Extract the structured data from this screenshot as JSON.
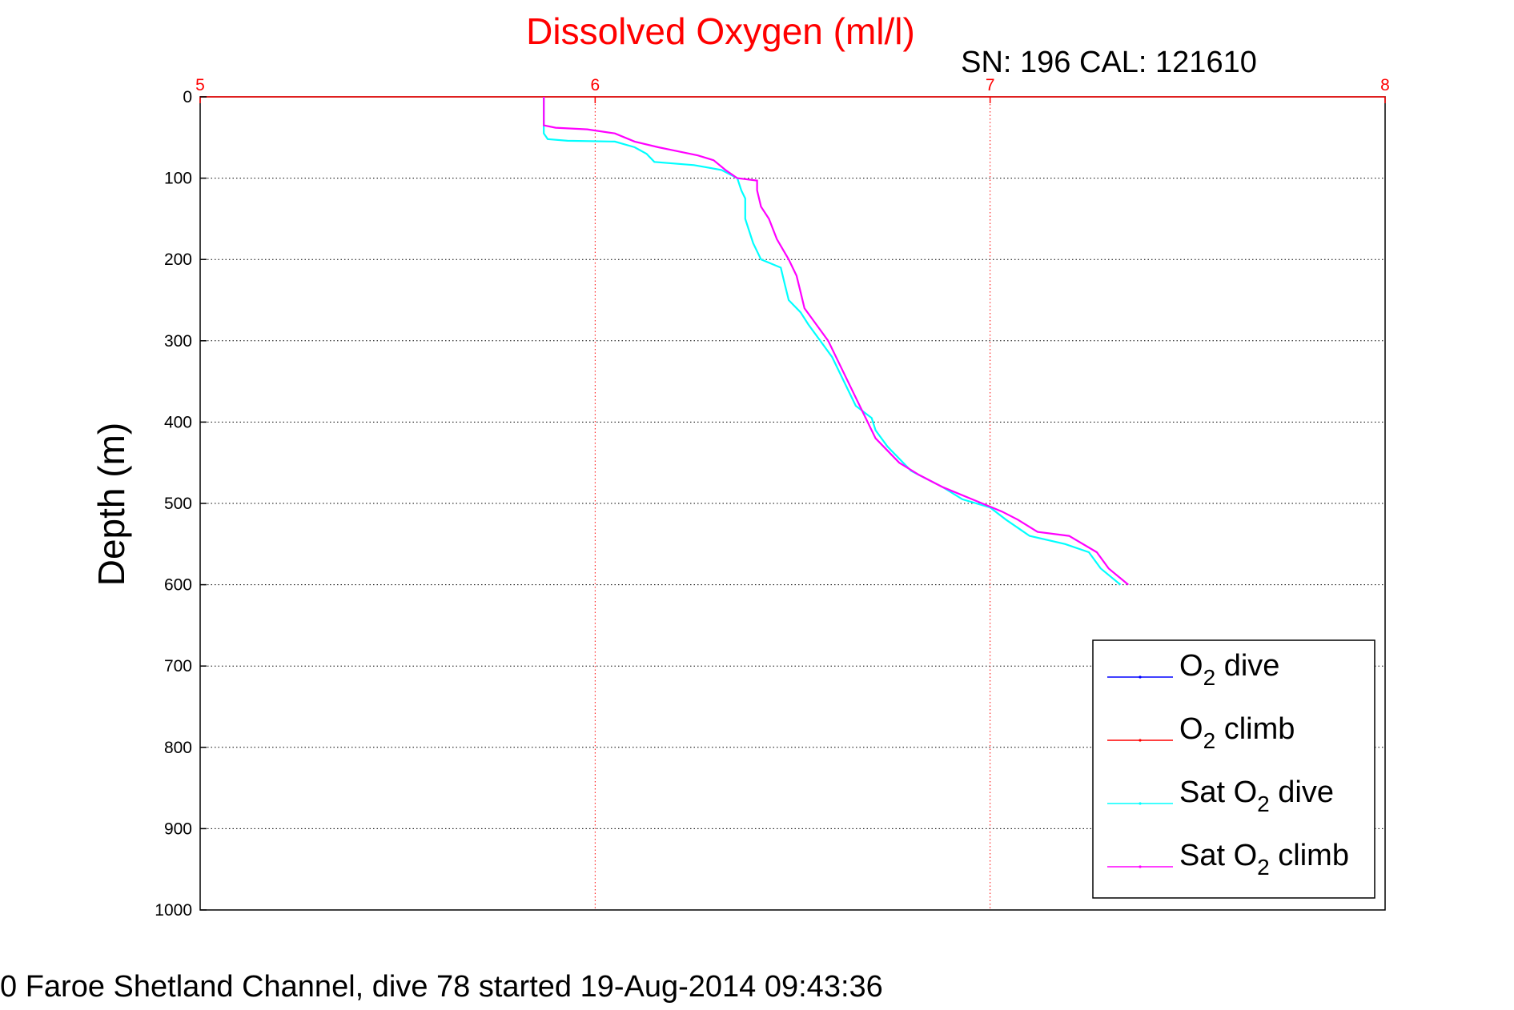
{
  "chart_data": {
    "type": "line",
    "title": "Dissolved Oxygen (ml/l)",
    "subtitle": "SN: 196  CAL: 121610",
    "ylabel": "Depth (m)",
    "xlabel": "",
    "caption": "0 Faroe Shetland Channel, dive 78 started 19-Aug-2014 09:43:36",
    "xlim": [
      5,
      8
    ],
    "ylim": [
      0,
      1000
    ],
    "y_reversed": true,
    "x_axis_position": "top",
    "xticks": [
      "5",
      "6",
      "7",
      "8"
    ],
    "yticks": [
      "0",
      "100",
      "200",
      "300",
      "400",
      "500",
      "600",
      "700",
      "800",
      "900",
      "1000"
    ],
    "grid": true,
    "legend_position": "bottom-right",
    "colors": {
      "title": "#ff0000",
      "xtick": "#ff0000",
      "xgrid": "#ff0000",
      "ygrid": "#000000"
    },
    "series": [
      {
        "name": "O2 dive",
        "legend_main": "O",
        "legend_sub": "2",
        "legend_rest": " dive",
        "legend_prefix": "",
        "color": "#0000ff",
        "visible": false,
        "points": []
      },
      {
        "name": "O2 climb",
        "legend_main": "O",
        "legend_sub": "2",
        "legend_rest": " climb",
        "legend_prefix": "",
        "color": "#ff0000",
        "visible": false,
        "points": []
      },
      {
        "name": "Sat O2 dive",
        "legend_prefix": "Sat ",
        "legend_main": "O",
        "legend_sub": "2",
        "legend_rest": " dive",
        "color": "#00ffff",
        "visible": true,
        "points": [
          [
            5.87,
            0
          ],
          [
            5.87,
            45
          ],
          [
            5.88,
            52
          ],
          [
            5.93,
            54
          ],
          [
            6.05,
            55
          ],
          [
            6.1,
            62
          ],
          [
            6.13,
            70
          ],
          [
            6.15,
            80
          ],
          [
            6.25,
            84
          ],
          [
            6.32,
            90
          ],
          [
            6.36,
            100
          ],
          [
            6.37,
            115
          ],
          [
            6.38,
            125
          ],
          [
            6.38,
            150
          ],
          [
            6.4,
            180
          ],
          [
            6.42,
            200
          ],
          [
            6.47,
            210
          ],
          [
            6.48,
            230
          ],
          [
            6.49,
            250
          ],
          [
            6.52,
            265
          ],
          [
            6.54,
            280
          ],
          [
            6.6,
            320
          ],
          [
            6.63,
            350
          ],
          [
            6.66,
            380
          ],
          [
            6.7,
            395
          ],
          [
            6.71,
            410
          ],
          [
            6.74,
            430
          ],
          [
            6.8,
            460
          ],
          [
            6.88,
            480
          ],
          [
            6.93,
            495
          ],
          [
            7.0,
            505
          ],
          [
            7.04,
            520
          ],
          [
            7.1,
            540
          ],
          [
            7.19,
            550
          ],
          [
            7.25,
            560
          ],
          [
            7.28,
            580
          ],
          [
            7.33,
            600
          ]
        ]
      },
      {
        "name": "Sat O2 climb",
        "legend_prefix": "Sat ",
        "legend_main": "O",
        "legend_sub": "2",
        "legend_rest": " climb",
        "color": "#ff00ff",
        "visible": true,
        "points": [
          [
            5.87,
            0
          ],
          [
            5.87,
            35
          ],
          [
            5.9,
            38
          ],
          [
            5.98,
            40
          ],
          [
            6.05,
            45
          ],
          [
            6.1,
            55
          ],
          [
            6.16,
            62
          ],
          [
            6.2,
            66
          ],
          [
            6.26,
            72
          ],
          [
            6.3,
            78
          ],
          [
            6.33,
            90
          ],
          [
            6.36,
            100
          ],
          [
            6.41,
            103
          ],
          [
            6.41,
            115
          ],
          [
            6.42,
            135
          ],
          [
            6.44,
            150
          ],
          [
            6.46,
            175
          ],
          [
            6.49,
            200
          ],
          [
            6.51,
            220
          ],
          [
            6.52,
            240
          ],
          [
            6.53,
            260
          ],
          [
            6.56,
            280
          ],
          [
            6.59,
            300
          ],
          [
            6.62,
            330
          ],
          [
            6.65,
            360
          ],
          [
            6.69,
            400
          ],
          [
            6.71,
            420
          ],
          [
            6.77,
            450
          ],
          [
            6.82,
            465
          ],
          [
            6.88,
            480
          ],
          [
            6.97,
            498
          ],
          [
            7.03,
            510
          ],
          [
            7.07,
            520
          ],
          [
            7.12,
            535
          ],
          [
            7.2,
            540
          ],
          [
            7.27,
            560
          ],
          [
            7.3,
            580
          ],
          [
            7.35,
            600
          ]
        ]
      }
    ]
  }
}
